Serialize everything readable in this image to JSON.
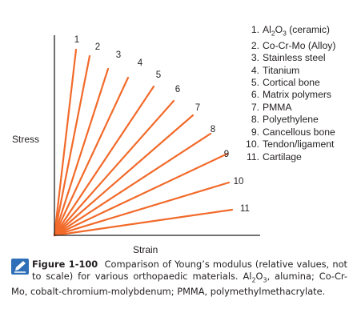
{
  "chart_data": {
    "type": "line",
    "xlabel": "Strain",
    "ylabel": "Stress",
    "note": "values not to scale",
    "series": [
      {
        "label": "1",
        "name": "Al2O3 (ceramic)"
      },
      {
        "label": "2",
        "name": "Co-Cr-Mo (Alloy)"
      },
      {
        "label": "3",
        "name": "Stainless steel"
      },
      {
        "label": "4",
        "name": "Titanium"
      },
      {
        "label": "5",
        "name": "Cortical bone"
      },
      {
        "label": "6",
        "name": "Matrix polymers"
      },
      {
        "label": "7",
        "name": "PMMA"
      },
      {
        "label": "8",
        "name": "Polyethylene"
      },
      {
        "label": "9",
        "name": "Cancellous bone"
      },
      {
        "label": "10",
        "name": "Tendon/ligament"
      },
      {
        "label": "11",
        "name": "Cartilage"
      }
    ],
    "colors": {
      "lines": "#f26a2a",
      "axes": "#231f20",
      "icon": "#2e6fb7"
    }
  },
  "caption": {
    "figure_label": "Figure 1-100",
    "text_html": "Comparison of Young’s modulus (relative values, not to scale) for various orthopaedic materials. Al<sub>2</sub>O<sub>3</sub>, alumina; Co-Cr-Mo, cobalt-chromium-molybdenum; PMMA, polymethylmethacrylate."
  }
}
